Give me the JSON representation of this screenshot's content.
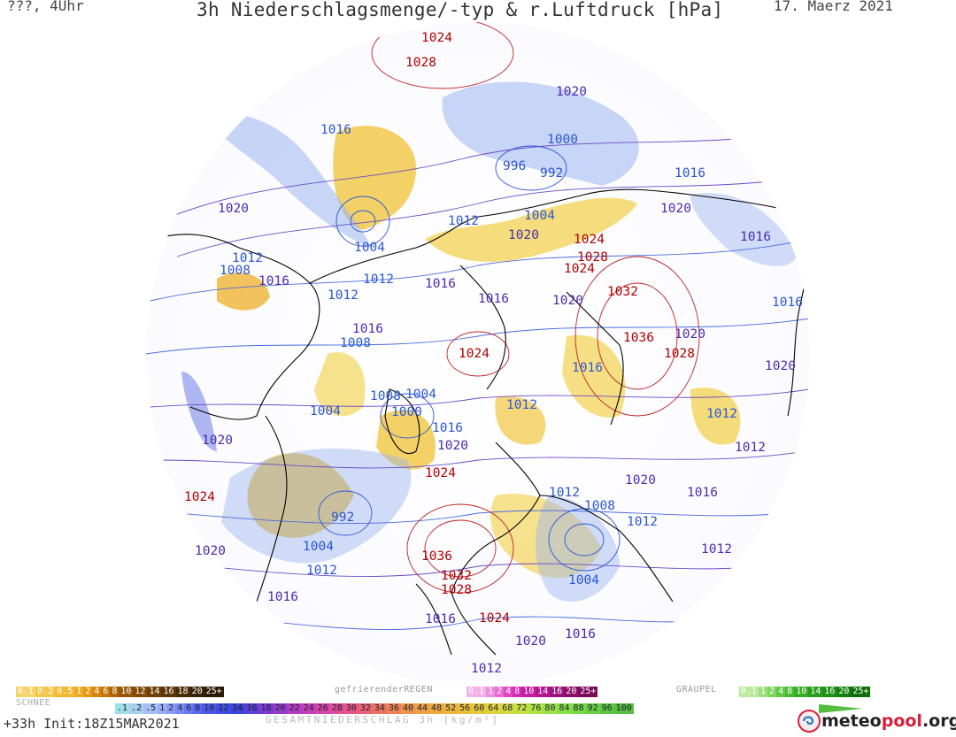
{
  "header": {
    "left": "???, 4Uhr",
    "title": "3h Niederschlagsmenge/-typ & r.Luftdruck [hPa]",
    "date": "17. Maerz 2021"
  },
  "pressure_labels": [
    {
      "text": "1024",
      "color": "#b00000"
    },
    {
      "text": "1028",
      "color": "#b00000"
    },
    {
      "text": "1020",
      "color": "#4a2bb0"
    },
    {
      "text": "1016",
      "color": "#2a56d6"
    },
    {
      "text": "1000",
      "color": "#2a56d6"
    },
    {
      "text": "996",
      "color": "#2a56d6"
    },
    {
      "text": "992",
      "color": "#2a56d6"
    },
    {
      "text": "1016",
      "color": "#2a56d6"
    },
    {
      "text": "1020",
      "color": "#4a2bb0"
    },
    {
      "text": "1004",
      "color": "#2a56d6"
    },
    {
      "text": "1012",
      "color": "#2a56d6"
    },
    {
      "text": "1020",
      "color": "#4a2bb0"
    },
    {
      "text": "1024",
      "color": "#b00000"
    },
    {
      "text": "1016",
      "color": "#4a2bb0"
    },
    {
      "text": "1020",
      "color": "#4a2bb0"
    },
    {
      "text": "1004",
      "color": "#2a56d6"
    },
    {
      "text": "1028",
      "color": "#b00000"
    },
    {
      "text": "1024",
      "color": "#b00000"
    },
    {
      "text": "1012",
      "color": "#2a56d6"
    },
    {
      "text": "1008",
      "color": "#2a56d6"
    },
    {
      "text": "1016",
      "color": "#4a2bb0"
    },
    {
      "text": "1012",
      "color": "#2a56d6"
    },
    {
      "text": "1012",
      "color": "#2a56d6"
    },
    {
      "text": "1016",
      "color": "#4a2bb0"
    },
    {
      "text": "1016",
      "color": "#4a2bb0"
    },
    {
      "text": "1032",
      "color": "#b00000"
    },
    {
      "text": "1020",
      "color": "#4a2bb0"
    },
    {
      "text": "1016",
      "color": "#2a56d6"
    },
    {
      "text": "1016",
      "color": "#4a2bb0"
    },
    {
      "text": "1008",
      "color": "#2a56d6"
    },
    {
      "text": "1024",
      "color": "#b00000"
    },
    {
      "text": "1036",
      "color": "#b00000"
    },
    {
      "text": "1020",
      "color": "#4a2bb0"
    },
    {
      "text": "1028",
      "color": "#b00000"
    },
    {
      "text": "1020",
      "color": "#4a2bb0"
    },
    {
      "text": "1016",
      "color": "#2a56d6"
    },
    {
      "text": "1008",
      "color": "#2a56d6"
    },
    {
      "text": "1004",
      "color": "#2a56d6"
    },
    {
      "text": "1004",
      "color": "#2a56d6"
    },
    {
      "text": "1000",
      "color": "#2a56d6"
    },
    {
      "text": "1012",
      "color": "#2a56d6"
    },
    {
      "text": "1012",
      "color": "#2a56d6"
    },
    {
      "text": "1016",
      "color": "#2a56d6"
    },
    {
      "text": "1020",
      "color": "#4a2bb0"
    },
    {
      "text": "1020",
      "color": "#4a2bb0"
    },
    {
      "text": "1012",
      "color": "#4a2bb0"
    },
    {
      "text": "1024",
      "color": "#b00000"
    },
    {
      "text": "1024",
      "color": "#b00000"
    },
    {
      "text": "1012",
      "color": "#2a56d6"
    },
    {
      "text": "1020",
      "color": "#4a2bb0"
    },
    {
      "text": "1016",
      "color": "#4a2bb0"
    },
    {
      "text": "992",
      "color": "#2a56d6"
    },
    {
      "text": "1008",
      "color": "#2a56d6"
    },
    {
      "text": "1012",
      "color": "#2a56d6"
    },
    {
      "text": "1004",
      "color": "#2a56d6"
    },
    {
      "text": "1020",
      "color": "#4a2bb0"
    },
    {
      "text": "1012",
      "color": "#2a56d6"
    },
    {
      "text": "1036",
      "color": "#b00000"
    },
    {
      "text": "1012",
      "color": "#4a2bb0"
    },
    {
      "text": "1032",
      "color": "#b00000"
    },
    {
      "text": "1028",
      "color": "#b00000"
    },
    {
      "text": "1004",
      "color": "#2a56d6"
    },
    {
      "text": "1016",
      "color": "#4a2bb0"
    },
    {
      "text": "1024",
      "color": "#b00000"
    },
    {
      "text": "1016",
      "color": "#4a2bb0"
    },
    {
      "text": "1016",
      "color": "#4a2bb0"
    },
    {
      "text": "1020",
      "color": "#4a2bb0"
    },
    {
      "text": "1012",
      "color": "#4a2bb0"
    }
  ],
  "legend": {
    "schnee_label": "SCHNEE",
    "schnee_scale": [
      "0.1",
      "0.2",
      "0.5",
      "1",
      "2",
      "4",
      "6",
      "8",
      "10",
      "12",
      "14",
      "16",
      "18",
      "20",
      "25+"
    ],
    "schnee_colors": [
      "#f5d56a",
      "#f2c74a",
      "#efb932",
      "#ecab23",
      "#e29a14",
      "#d5880c",
      "#c27608",
      "#ad6507",
      "#975607",
      "#824a08",
      "#6e3f08",
      "#5c3408",
      "#4b2a07",
      "#3b2106",
      "#2c1905"
    ],
    "gefrieren_label": "gefrierenderREGEN",
    "gefrieren_scale": [
      "0.1",
      "1",
      "2",
      "4",
      "8",
      "10",
      "14",
      "16",
      "20",
      "25+"
    ],
    "gefrieren_colors": [
      "#f3b3e6",
      "#ee8fdb",
      "#e86bd0",
      "#e047c4",
      "#d52bb4",
      "#c51ea1",
      "#b3168e",
      "#a0117b",
      "#8d0d69",
      "#7a0a58"
    ],
    "graupel_label": "GRAUPEL",
    "graupel_scale": [
      "0.1",
      "1",
      "2",
      "4",
      "8",
      "10",
      "14",
      "16",
      "20",
      "25+"
    ],
    "graupel_colors": [
      "#b9ec9f",
      "#9be07d",
      "#7fd45f",
      "#62c845",
      "#49bb33",
      "#35ad26",
      "#279e1c",
      "#1c8f14",
      "#137f0e",
      "#0c6f09"
    ],
    "rain_scale": [
      ".1",
      ".2",
      ".5",
      "1",
      "2",
      "4",
      "6",
      "8",
      "10",
      "12",
      "14",
      "16",
      "18",
      "20",
      "22",
      "24",
      "26",
      "28",
      "30",
      "32",
      "34",
      "36",
      "40",
      "44",
      "48",
      "52",
      "56",
      "60",
      "64",
      "68",
      "72",
      "76",
      "80",
      "84",
      "88",
      "92",
      "96",
      "100"
    ],
    "rain_colors": [
      "#9fe0e8",
      "#a6cff0",
      "#a7bff5",
      "#9aaef6",
      "#8a9cf5",
      "#7a8af4",
      "#6978f2",
      "#5967ef",
      "#4b58ea",
      "#3f4ce3",
      "#3a44d8",
      "#5a3fd6",
      "#7a3ad2",
      "#993bcc",
      "#b23cc4",
      "#c63fb9",
      "#d544aa",
      "#df4c99",
      "#e65686",
      "#ea6373",
      "#ec7262",
      "#ec8255",
      "#ec934b",
      "#ec9f45",
      "#ecaa40",
      "#ebb43d",
      "#e9be3b",
      "#e6c73b",
      "#dfd03d",
      "#d2d840",
      "#c2df43",
      "#afe345",
      "#9ae346",
      "#86df46",
      "#74d945",
      "#65d043",
      "#5cc641",
      "#55bd40"
    ],
    "gesamt_label": "GESAMTNIEDERSCHLAG 3h [kg/m²]"
  },
  "footer": {
    "run": "+33h Init:18Z15MAR2021",
    "logo_part1": "meteo",
    "logo_part2": "pool",
    "logo_part3": ".org"
  },
  "colors": {
    "high_pressure": "#b00000",
    "low_pressure": "#2a56d6",
    "mid_pressure": "#4a2bb0",
    "coastline": "#000000",
    "snow": "#f2c94c",
    "rain": "#9ab0f0"
  }
}
